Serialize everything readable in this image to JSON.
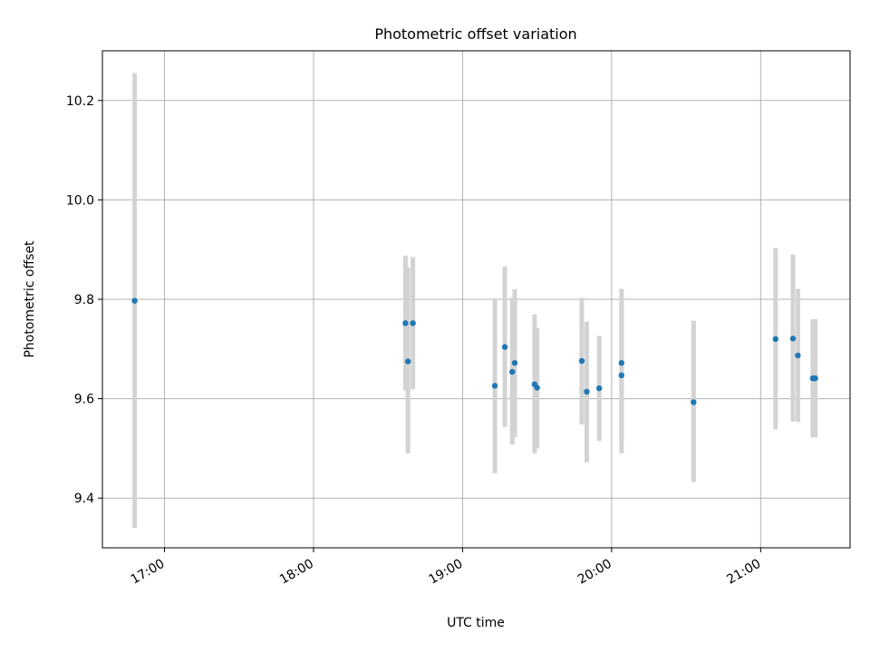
{
  "chart_data": {
    "type": "scatter",
    "title": "Photometric offset variation",
    "xlabel": "UTC time",
    "ylabel": "Photometric offset",
    "xlim": [
      "16:35",
      "21:36"
    ],
    "ylim": [
      9.3,
      10.3
    ],
    "x_ticks": [
      "17:00",
      "18:00",
      "19:00",
      "20:00",
      "21:00"
    ],
    "y_ticks": [
      "9.4",
      "9.6",
      "9.8",
      "10.0",
      "10.2"
    ],
    "grid": true,
    "points": [
      {
        "time": "16:48",
        "y": 9.797,
        "yerr_low": 9.34,
        "yerr_high": 10.255
      },
      {
        "time": "18:37",
        "y": 9.752,
        "yerr_low": 9.617,
        "yerr_high": 9.888
      },
      {
        "time": "18:38",
        "y": 9.675,
        "yerr_low": 9.49,
        "yerr_high": 9.864
      },
      {
        "time": "18:40",
        "y": 9.752,
        "yerr_low": 9.619,
        "yerr_high": 9.885
      },
      {
        "time": "19:13",
        "y": 9.626,
        "yerr_low": 9.45,
        "yerr_high": 9.802
      },
      {
        "time": "19:17",
        "y": 9.704,
        "yerr_low": 9.543,
        "yerr_high": 9.866
      },
      {
        "time": "19:20",
        "y": 9.654,
        "yerr_low": 9.508,
        "yerr_high": 9.803
      },
      {
        "time": "19:21",
        "y": 9.672,
        "yerr_low": 9.522,
        "yerr_high": 9.82
      },
      {
        "time": "19:29",
        "y": 9.629,
        "yerr_low": 9.49,
        "yerr_high": 9.77
      },
      {
        "time": "19:30",
        "y": 9.622,
        "yerr_low": 9.5,
        "yerr_high": 9.742
      },
      {
        "time": "19:48",
        "y": 9.676,
        "yerr_low": 9.548,
        "yerr_high": 9.803
      },
      {
        "time": "19:50",
        "y": 9.614,
        "yerr_low": 9.472,
        "yerr_high": 9.755
      },
      {
        "time": "19:55",
        "y": 9.621,
        "yerr_low": 9.515,
        "yerr_high": 9.726
      },
      {
        "time": "20:04",
        "y": 9.672,
        "yerr_low": 9.52,
        "yerr_high": 9.821
      },
      {
        "time": "20:04",
        "y": 9.647,
        "yerr_low": 9.49,
        "yerr_high": 9.803
      },
      {
        "time": "20:33",
        "y": 9.593,
        "yerr_low": 9.432,
        "yerr_high": 9.757
      },
      {
        "time": "21:06",
        "y": 9.72,
        "yerr_low": 9.538,
        "yerr_high": 9.903
      },
      {
        "time": "21:13",
        "y": 9.721,
        "yerr_low": 9.554,
        "yerr_high": 9.89
      },
      {
        "time": "21:15",
        "y": 9.687,
        "yerr_low": 9.553,
        "yerr_high": 9.821
      },
      {
        "time": "21:21",
        "y": 9.641,
        "yerr_low": 9.522,
        "yerr_high": 9.76
      },
      {
        "time": "21:22",
        "y": 9.641,
        "yerr_low": 9.522,
        "yerr_high": 9.76
      }
    ],
    "colors": {
      "point": "#1f77b4",
      "error_bar": "#d3d3d3",
      "grid": "#b0b0b0",
      "axes": "#000000"
    }
  }
}
